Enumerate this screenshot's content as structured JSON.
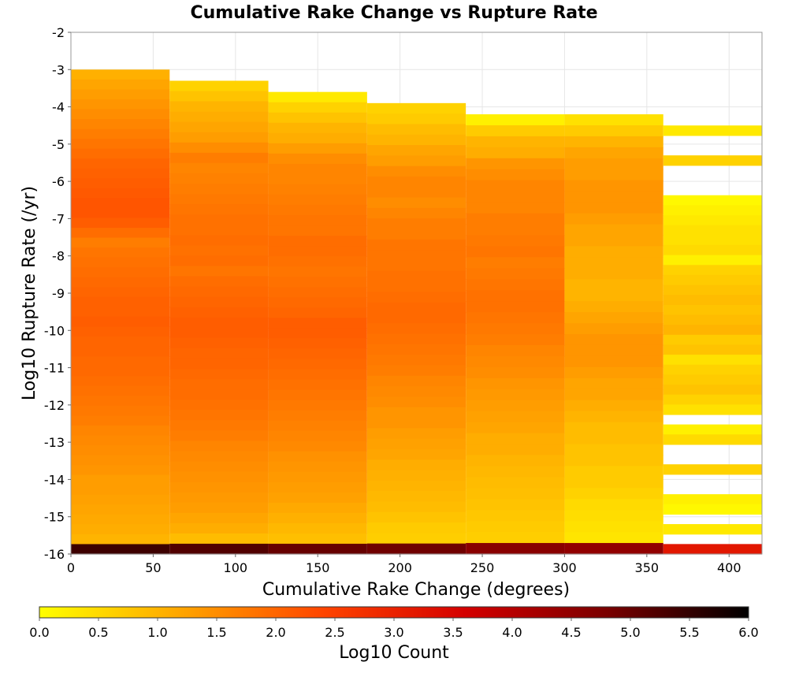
{
  "chart_data": {
    "type": "heatmap",
    "title": "Cumulative Rake Change vs Rupture Rate",
    "xlabel": "Cumulative Rake Change (degrees)",
    "ylabel": "Log10 Rupture Rate (/yr)",
    "colorbar_label": "Log10 Count",
    "xlim": [
      0,
      420
    ],
    "ylim": [
      -16,
      -2
    ],
    "x_ticks": [
      0,
      50,
      100,
      150,
      200,
      250,
      300,
      350,
      400
    ],
    "y_ticks": [
      -2,
      -3,
      -4,
      -5,
      -6,
      -7,
      -8,
      -9,
      -10,
      -11,
      -12,
      -13,
      -14,
      -15,
      -16
    ],
    "colorbar_ticks": [
      0.0,
      0.5,
      1.0,
      1.5,
      2.0,
      2.5,
      3.0,
      3.5,
      4.0,
      4.5,
      5.0,
      5.5,
      6.0
    ],
    "colorbar_range": [
      0.0,
      6.0
    ],
    "colormap": [
      "#ffff00",
      "#ffa500",
      "#ff4500",
      "#d40000",
      "#7a0000",
      "#000000"
    ],
    "x_bin_width": 60,
    "y_bin_height": 0.2857,
    "columns": [
      {
        "x_start": 0,
        "y_top": -3.0,
        "values": [
          1.05,
          1.2,
          1.3,
          1.4,
          1.5,
          1.6,
          1.7,
          1.8,
          1.9,
          2.0,
          2.05,
          2.1,
          2.15,
          2.2,
          2.2,
          2.1,
          1.9,
          1.7,
          1.8,
          1.85,
          1.9,
          1.95,
          2.0,
          2.05,
          2.05,
          2.1,
          2.05,
          2.0,
          2.0,
          1.95,
          1.95,
          1.9,
          1.85,
          1.8,
          1.75,
          1.7,
          1.6,
          1.55,
          1.5,
          1.45,
          1.4,
          1.3,
          1.3,
          1.25,
          1.2,
          1.15,
          1.1,
          1.0,
          5.4
        ]
      },
      {
        "x_start": 60,
        "y_top": -3.3,
        "values": [
          0.6,
          0.8,
          1.0,
          1.1,
          1.2,
          1.3,
          1.5,
          1.7,
          1.6,
          1.65,
          1.7,
          1.75,
          1.8,
          1.85,
          1.85,
          1.9,
          1.85,
          1.9,
          1.8,
          1.9,
          1.95,
          2.0,
          2.05,
          2.1,
          2.1,
          2.05,
          2.0,
          2.0,
          1.95,
          1.9,
          1.9,
          1.85,
          1.8,
          1.75,
          1.7,
          1.6,
          1.55,
          1.5,
          1.45,
          1.4,
          1.35,
          1.3,
          1.2,
          1.1,
          0.9,
          5.2
        ]
      },
      {
        "x_start": 120,
        "y_top": -3.6,
        "values": [
          0.3,
          0.6,
          0.8,
          1.0,
          1.1,
          1.3,
          1.5,
          1.6,
          1.6,
          1.65,
          1.7,
          1.75,
          1.8,
          1.8,
          1.9,
          1.9,
          1.85,
          1.8,
          1.85,
          1.9,
          1.95,
          2.0,
          2.1,
          2.1,
          2.05,
          2.0,
          1.95,
          1.9,
          1.85,
          1.8,
          1.75,
          1.7,
          1.65,
          1.6,
          1.55,
          1.45,
          1.4,
          1.35,
          1.3,
          1.25,
          1.15,
          1.05,
          0.95,
          0.85,
          5.0
        ]
      },
      {
        "x_start": 180,
        "y_top": -3.9,
        "values": [
          0.6,
          0.7,
          0.9,
          1.0,
          1.2,
          1.3,
          1.5,
          1.6,
          1.6,
          1.5,
          1.6,
          1.7,
          1.7,
          1.8,
          1.8,
          1.8,
          1.85,
          1.85,
          1.9,
          1.95,
          1.95,
          1.9,
          1.85,
          1.8,
          1.75,
          1.7,
          1.6,
          1.55,
          1.5,
          1.4,
          1.4,
          1.3,
          1.25,
          1.2,
          1.1,
          1.05,
          1.0,
          0.95,
          0.9,
          0.8,
          0.7,
          0.65,
          4.9
        ]
      },
      {
        "x_start": 240,
        "y_top": -4.2,
        "values": [
          0.2,
          0.7,
          1.0,
          1.1,
          1.4,
          1.5,
          1.6,
          1.6,
          1.6,
          1.7,
          1.7,
          1.75,
          1.8,
          1.7,
          1.75,
          1.8,
          1.85,
          1.85,
          1.8,
          1.75,
          1.7,
          1.6,
          1.55,
          1.5,
          1.4,
          1.35,
          1.3,
          1.25,
          1.2,
          1.1,
          1.1,
          1.0,
          0.95,
          0.9,
          0.85,
          0.8,
          0.75,
          0.7,
          0.65,
          4.6
        ]
      },
      {
        "x_start": 300,
        "y_top": -4.2,
        "values": [
          0.4,
          0.7,
          1.0,
          1.2,
          1.3,
          1.3,
          1.4,
          1.4,
          1.4,
          1.3,
          1.2,
          1.2,
          1.1,
          1.1,
          1.1,
          1.0,
          1.0,
          1.1,
          1.2,
          1.3,
          1.4,
          1.4,
          1.4,
          1.3,
          1.2,
          1.2,
          1.1,
          1.0,
          0.9,
          0.9,
          0.8,
          0.8,
          0.7,
          0.7,
          0.6,
          0.5,
          0.45,
          0.4,
          0.35,
          4.5
        ]
      },
      {
        "x_start": 360,
        "y_top": -4.5,
        "values": [
          0.3,
          null,
          null,
          0.6,
          null,
          null,
          null,
          0.1,
          0.2,
          0.3,
          0.4,
          0.4,
          0.5,
          0.2,
          0.6,
          0.7,
          0.8,
          0.9,
          0.8,
          0.9,
          1.0,
          0.7,
          0.8,
          0.4,
          0.6,
          0.7,
          0.8,
          0.6,
          0.4,
          null,
          0.2,
          0.5,
          null,
          null,
          0.6,
          null,
          null,
          0.2,
          0.1,
          null,
          0.3,
          null,
          3.2
        ]
      }
    ]
  }
}
